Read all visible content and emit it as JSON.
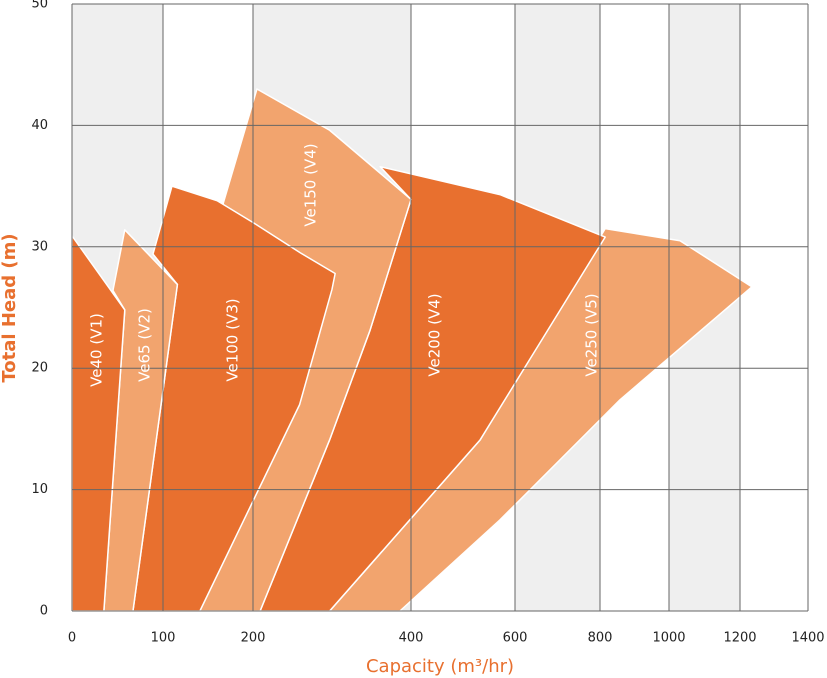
{
  "chart_data": {
    "type": "area",
    "x_label": "Capacity (m³/hr)",
    "y_label": "Total Head (m)",
    "xlim": [
      0,
      1400
    ],
    "xticks": [
      0,
      100,
      200,
      400,
      600,
      800,
      1000,
      1200,
      1400
    ],
    "ylim": [
      0,
      50
    ],
    "yticks": [
      0,
      10,
      20,
      30,
      40,
      50
    ],
    "grid": true,
    "series": [
      {
        "name": "Ve40 (V1)",
        "color": "#e8702f",
        "x": [
          0,
          58,
          35,
          0
        ],
        "values": [
          30.9,
          24.8,
          0,
          0
        ]
      },
      {
        "name": "Ve65 (V2)",
        "color": "#f2a46e",
        "x": [
          45,
          58,
          116,
          67,
          35,
          58
        ],
        "values": [
          26.4,
          31.4,
          26.9,
          0,
          0,
          24.8
        ]
      },
      {
        "name": "Ve100 (V3)",
        "color": "#e8702f",
        "x": [
          89,
          110,
          160,
          200,
          260,
          304,
          300,
          259,
          141,
          67,
          116
        ],
        "values": [
          29.4,
          35,
          33.8,
          32,
          29.5,
          27.8,
          26.5,
          17,
          0,
          0,
          26.9
        ]
      },
      {
        "name": "Ve150 (V4)",
        "color": "#f2a46e",
        "x": [
          167,
          205,
          297,
          400,
          348,
          297,
          209,
          141
        ],
        "values": [
          33.6,
          43,
          39.6,
          33.9,
          23.1,
          14.1,
          0,
          0
        ]
      },
      {
        "name": "Ve200 (V4)",
        "color": "#e8702f",
        "x": [
          361,
          571,
          815,
          533,
          297,
          209,
          297,
          348,
          400
        ],
        "values": [
          36.6,
          34.3,
          30.8,
          14.1,
          0,
          0,
          14.1,
          23.1,
          33.9
        ]
      },
      {
        "name": "Ve250 (V5)",
        "color": "#f2a46e",
        "x": [
          815,
          1031,
          1235,
          858,
          571,
          386,
          297,
          533
        ],
        "values": [
          31.5,
          30.5,
          26.7,
          17.4,
          7.5,
          0,
          0,
          14.1
        ]
      }
    ]
  }
}
